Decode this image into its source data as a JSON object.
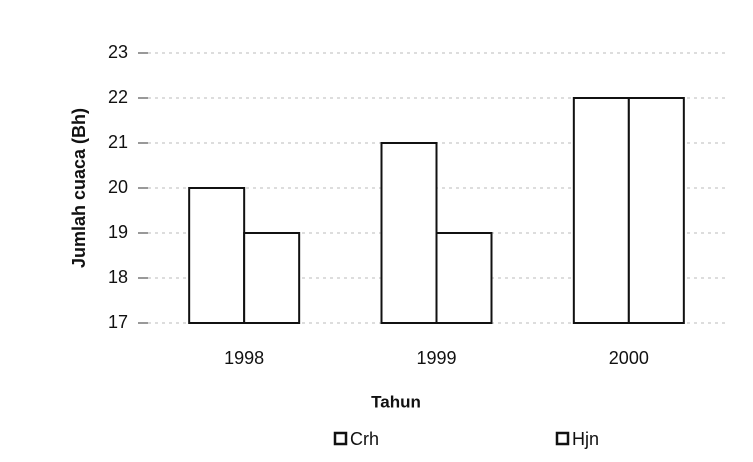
{
  "chart_data": {
    "type": "bar",
    "xlabel": "Tahun",
    "ylabel": "Jumlah cuaca (Bh)",
    "categories": [
      "1998",
      "1999",
      "2000"
    ],
    "series": [
      {
        "name": "Crh",
        "color": "#ffffff",
        "values": [
          20,
          21,
          22
        ]
      },
      {
        "name": "Hjn",
        "color": "#ffffff",
        "values": [
          19,
          19,
          22
        ]
      }
    ],
    "ylim": [
      17,
      23
    ],
    "yticks": [
      17,
      18,
      19,
      20,
      21,
      22,
      23
    ],
    "grid": true,
    "legend": "bottom"
  }
}
